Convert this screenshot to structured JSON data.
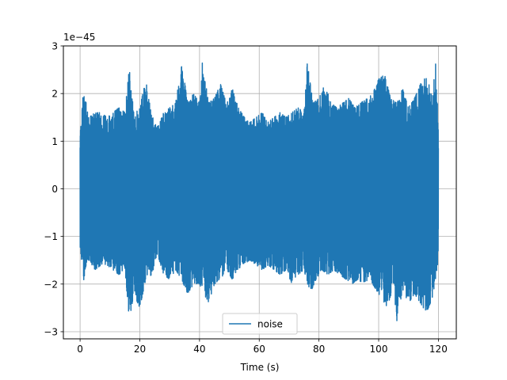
{
  "chart_data": {
    "type": "line",
    "title": "",
    "xlabel": "Time (s)",
    "ylabel": "",
    "y_scale_label": "1e−45",
    "xlim": [
      -5.6,
      126.0
    ],
    "ylim": [
      -3.15,
      3.0
    ],
    "x_ticks": [
      0,
      20,
      40,
      60,
      80,
      100,
      120
    ],
    "x_tick_labels": [
      "0",
      "20",
      "40",
      "60",
      "80",
      "100",
      "120"
    ],
    "y_ticks": [
      -3,
      -2,
      -1,
      0,
      1,
      2,
      3
    ],
    "y_tick_labels": [
      "−3",
      "−2",
      "−1",
      "0",
      "1",
      "2",
      "3"
    ],
    "grid": true,
    "legend_position": "lower center",
    "series": [
      {
        "name": "noise",
        "color": "#1f77b4",
        "x_range": [
          0,
          120
        ],
        "envelope_upper": [
          [
            0,
            1.2
          ],
          [
            1,
            2.0
          ],
          [
            2,
            1.9
          ],
          [
            3,
            1.5
          ],
          [
            5,
            1.6
          ],
          [
            7,
            1.6
          ],
          [
            9,
            1.5
          ],
          [
            11,
            1.6
          ],
          [
            13,
            1.7
          ],
          [
            15,
            1.6
          ],
          [
            16.5,
            2.55
          ],
          [
            18,
            1.6
          ],
          [
            20,
            1.7
          ],
          [
            22,
            2.3
          ],
          [
            24,
            1.6
          ],
          [
            26,
            1.3
          ],
          [
            28,
            1.6
          ],
          [
            30,
            1.7
          ],
          [
            32,
            1.8
          ],
          [
            34,
            2.7
          ],
          [
            36,
            1.8
          ],
          [
            38,
            2.0
          ],
          [
            40,
            1.8
          ],
          [
            41,
            2.7
          ],
          [
            43,
            1.8
          ],
          [
            45,
            1.9
          ],
          [
            47,
            2.2
          ],
          [
            49,
            1.8
          ],
          [
            51,
            2.1
          ],
          [
            53,
            1.7
          ],
          [
            55,
            1.5
          ],
          [
            57,
            1.4
          ],
          [
            59,
            1.5
          ],
          [
            61,
            1.6
          ],
          [
            63,
            1.4
          ],
          [
            65,
            1.5
          ],
          [
            67,
            1.6
          ],
          [
            69,
            1.5
          ],
          [
            71,
            1.6
          ],
          [
            73,
            1.7
          ],
          [
            75,
            1.6
          ],
          [
            76,
            2.7
          ],
          [
            78,
            1.8
          ],
          [
            80,
            1.9
          ],
          [
            82,
            2.2
          ],
          [
            84,
            1.8
          ],
          [
            86,
            1.7
          ],
          [
            88,
            1.8
          ],
          [
            90,
            1.9
          ],
          [
            92,
            1.7
          ],
          [
            94,
            1.8
          ],
          [
            96,
            1.9
          ],
          [
            98,
            2.0
          ],
          [
            100,
            2.3
          ],
          [
            102,
            2.4
          ],
          [
            104,
            1.9
          ],
          [
            106,
            1.8
          ],
          [
            108,
            2.1
          ],
          [
            110,
            1.7
          ],
          [
            112,
            1.9
          ],
          [
            114,
            2.2
          ],
          [
            116,
            2.4
          ],
          [
            118,
            1.9
          ],
          [
            119,
            2.7
          ],
          [
            120,
            1.5
          ]
        ],
        "envelope_lower": [
          [
            0,
            -1.2
          ],
          [
            1,
            -2.0
          ],
          [
            2,
            -1.6
          ],
          [
            3,
            -1.5
          ],
          [
            5,
            -1.7
          ],
          [
            7,
            -1.6
          ],
          [
            9,
            -1.6
          ],
          [
            11,
            -1.7
          ],
          [
            13,
            -1.8
          ],
          [
            15,
            -1.7
          ],
          [
            16.5,
            -2.75
          ],
          [
            18,
            -2.2
          ],
          [
            20,
            -2.5
          ],
          [
            22,
            -1.9
          ],
          [
            24,
            -1.8
          ],
          [
            26,
            -1.4
          ],
          [
            28,
            -1.8
          ],
          [
            30,
            -1.9
          ],
          [
            32,
            -1.7
          ],
          [
            34,
            -1.9
          ],
          [
            36,
            -2.2
          ],
          [
            38,
            -2.0
          ],
          [
            40,
            -2.0
          ],
          [
            43,
            -2.4
          ],
          [
            45,
            -2.0
          ],
          [
            47,
            -1.9
          ],
          [
            49,
            -1.7
          ],
          [
            51,
            -1.9
          ],
          [
            53,
            -1.7
          ],
          [
            55,
            -1.6
          ],
          [
            57,
            -1.5
          ],
          [
            59,
            -1.6
          ],
          [
            61,
            -1.7
          ],
          [
            63,
            -1.6
          ],
          [
            65,
            -1.7
          ],
          [
            67,
            -1.8
          ],
          [
            69,
            -1.7
          ],
          [
            71,
            -2.0
          ],
          [
            73,
            -1.8
          ],
          [
            75,
            -1.7
          ],
          [
            77,
            -2.2
          ],
          [
            79,
            -1.9
          ],
          [
            81,
            -1.7
          ],
          [
            83,
            -1.8
          ],
          [
            85,
            -1.7
          ],
          [
            87,
            -1.8
          ],
          [
            89,
            -1.9
          ],
          [
            91,
            -2.0
          ],
          [
            93,
            -1.9
          ],
          [
            95,
            -2.0
          ],
          [
            97,
            -1.9
          ],
          [
            99,
            -2.1
          ],
          [
            101,
            -2.3
          ],
          [
            103,
            -2.5
          ],
          [
            105,
            -2.0
          ],
          [
            106,
            -2.85
          ],
          [
            108,
            -2.1
          ],
          [
            110,
            -2.4
          ],
          [
            112,
            -2.2
          ],
          [
            114,
            -2.4
          ],
          [
            116,
            -2.6
          ],
          [
            118,
            -2.3
          ],
          [
            120,
            -1.5
          ]
        ]
      }
    ]
  }
}
